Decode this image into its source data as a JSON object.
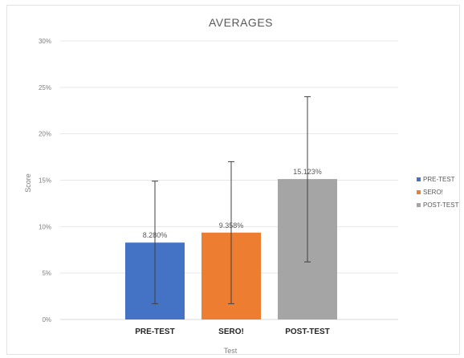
{
  "chart_data": {
    "type": "bar",
    "title": "AVERAGES",
    "xlabel": "Test",
    "ylabel": "Score",
    "categories": [
      "PRE-TEST",
      "SERO!",
      "POST-TEST"
    ],
    "values": [
      8.28,
      9.358,
      15.123
    ],
    "data_labels": [
      "8.280%",
      "9.358%",
      "15.123%"
    ],
    "error_bars": [
      [
        1.7,
        14.9
      ],
      [
        1.7,
        17.0
      ],
      [
        6.2,
        24.0
      ]
    ],
    "colors": [
      "#4472c4",
      "#ed7d31",
      "#a5a5a5"
    ],
    "ylim": [
      0,
      30
    ],
    "yticks": [
      "0%",
      "5%",
      "10%",
      "15%",
      "20%",
      "25%",
      "30%"
    ],
    "grid": true,
    "legend": {
      "placement": "right",
      "entries": [
        "PRE-TEST",
        "SERO!",
        "POST-TEST"
      ]
    }
  }
}
